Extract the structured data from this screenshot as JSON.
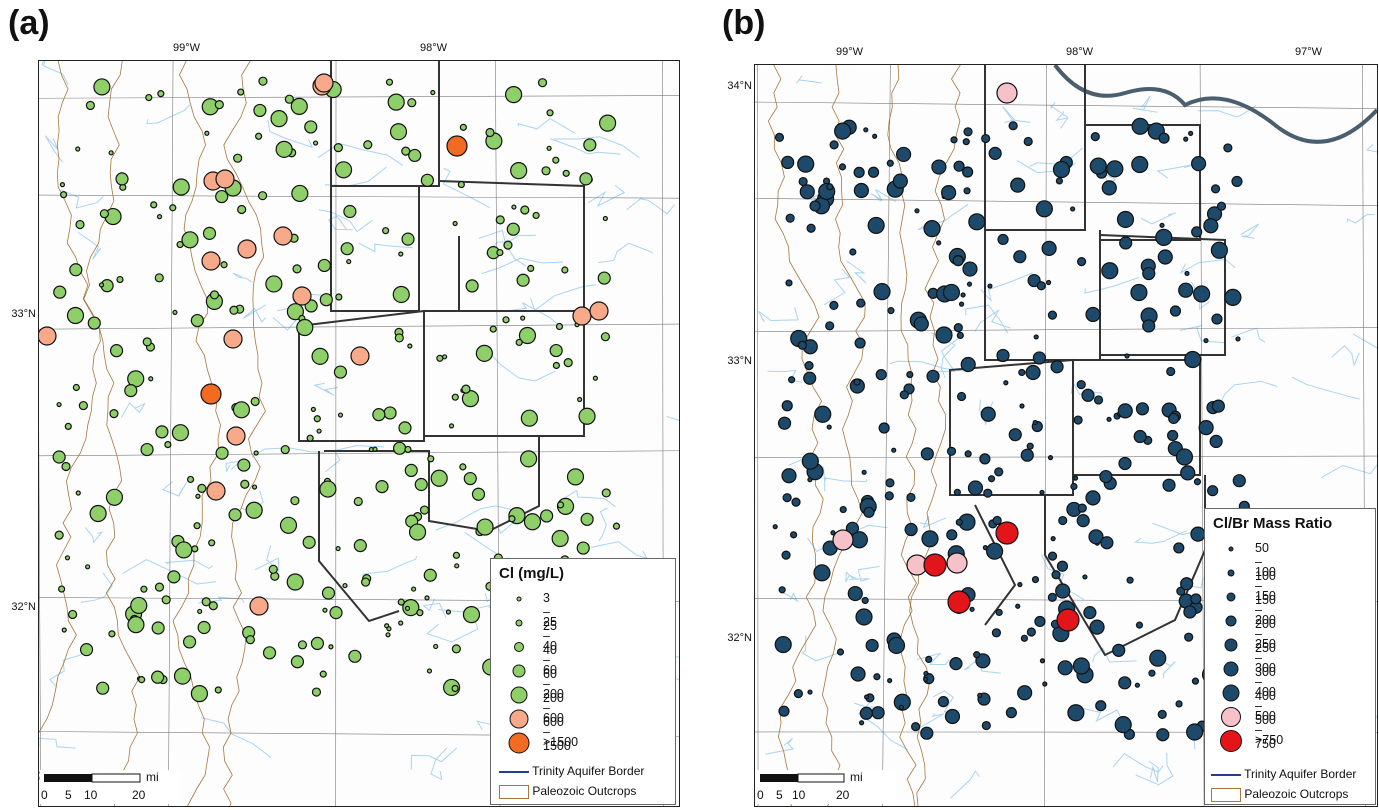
{
  "panel_a": {
    "letter": "(a)",
    "lon_labels": [
      "99°W",
      "98°W"
    ],
    "lat_labels": [
      "33°N",
      "32°N"
    ],
    "legend_title": "Cl (mg/L)",
    "legend_classes": [
      {
        "label": "3 – 25",
        "color": "#8ecf6a"
      },
      {
        "label": "25 – 40",
        "color": "#8ecf6a"
      },
      {
        "label": "40 – 60",
        "color": "#8ecf6a"
      },
      {
        "label": "60 – 200",
        "color": "#8ecf6a"
      },
      {
        "label": "200 – 600",
        "color": "#8ecf6a"
      },
      {
        "label": "600 – 1500",
        "color": "#f7a98a"
      },
      {
        "label": ">1500",
        "color": "#f26b21"
      }
    ],
    "border_label": "Trinity Aquifer Border",
    "outcrop_label": "Paleozoic Outcrops",
    "scale_unit": "mi",
    "scale_ticks": [
      "0",
      "5",
      "10",
      "20"
    ]
  },
  "panel_b": {
    "letter": "(b)",
    "lon_labels": [
      "99°W",
      "98°W",
      "97°W"
    ],
    "lat_labels": [
      "34°N",
      "33°N",
      "32°N"
    ],
    "legend_title": "Cl/Br Mass Ratio",
    "legend_classes": [
      {
        "label": "50 – 100",
        "color": "#1d4a6b"
      },
      {
        "label": "100 – 150",
        "color": "#1d4a6b"
      },
      {
        "label": "150 – 200",
        "color": "#1d4a6b"
      },
      {
        "label": "200 – 250",
        "color": "#1d4a6b"
      },
      {
        "label": "250 – 300",
        "color": "#1d4a6b"
      },
      {
        "label": "300 – 400",
        "color": "#1d4a6b"
      },
      {
        "label": "400 – 500",
        "color": "#1d4a6b"
      },
      {
        "label": "500 – 750",
        "color": "#f6c1c8"
      },
      {
        "label": ">750",
        "color": "#e4141b"
      }
    ],
    "border_label": "Trinity Aquifer Border",
    "outcrop_label": "Paleozoic Outcrops",
    "scale_unit": "mi",
    "scale_ticks": [
      "0",
      "5",
      "10",
      "20"
    ]
  },
  "colors": {
    "trinity_border": "#1f3f8f",
    "outcrop": "#a6773f",
    "water": "#a9d4f2",
    "county": "#7a7a7a",
    "river": "#4a5e6e"
  }
}
